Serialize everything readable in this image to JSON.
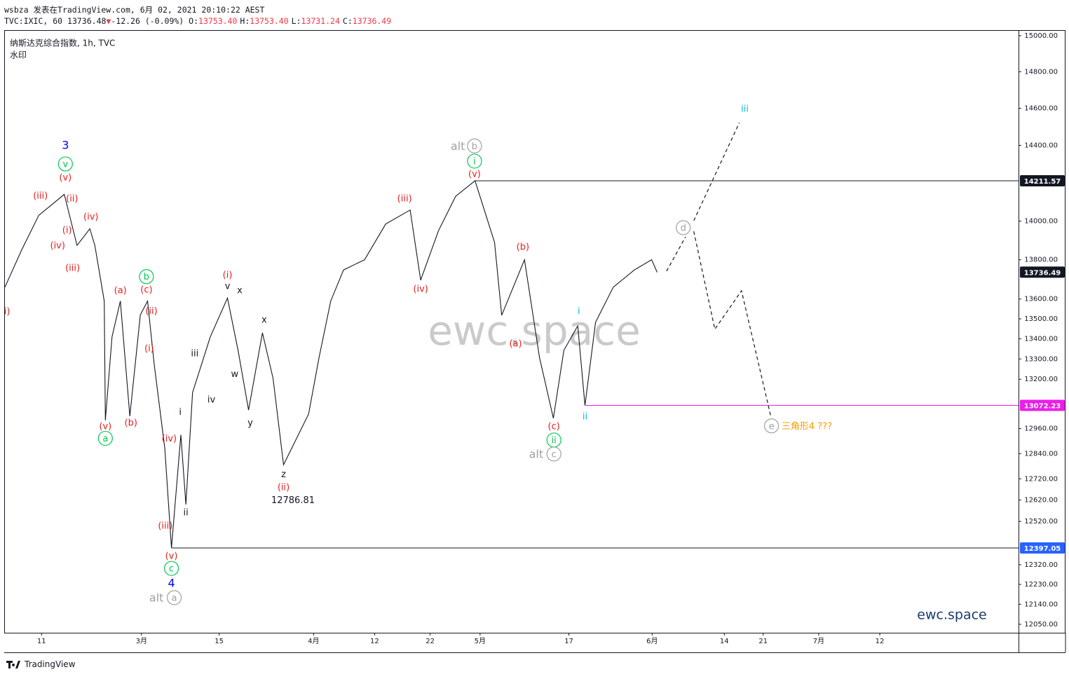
{
  "header": {
    "author_line": "wsbza 发表在TradingView.com, 6月 02, 2021 20:10:22 AEST",
    "symbol": "TVC:IXIC, 60",
    "last": "13736.48",
    "arrow": "▼",
    "change": "-12.26 (-0.09%)",
    "ohlc": [
      {
        "label": "O:",
        "value": "13753.40"
      },
      {
        "label": "H:",
        "value": "13753.40"
      },
      {
        "label": "L:",
        "value": "13731.24"
      },
      {
        "label": "C:",
        "value": "13736.49"
      }
    ]
  },
  "footer": {
    "brand": "TradingView"
  },
  "chart_data": {
    "type": "line",
    "title": "纳斯达克综合指数, 1h, TVC",
    "subtitle": "水印",
    "watermark": "ewc.space",
    "signature": "ewc.space",
    "log_scale": true,
    "grid": false,
    "xlim": [
      35.4,
      218
    ],
    "ylim": [
      12012,
      15027
    ],
    "xticks": [
      {
        "value": 42,
        "label": "11"
      },
      {
        "value": 60,
        "label": "3月"
      },
      {
        "value": 74,
        "label": "15"
      },
      {
        "value": 91,
        "label": "4月"
      },
      {
        "value": 102,
        "label": "12"
      },
      {
        "value": 112,
        "label": "22"
      },
      {
        "value": 121,
        "label": "5月"
      },
      {
        "value": 137,
        "label": "17"
      },
      {
        "value": 152,
        "label": "6月"
      },
      {
        "value": 165,
        "label": "14"
      },
      {
        "value": 172,
        "label": "21"
      },
      {
        "value": 182,
        "label": "7月"
      },
      {
        "value": 193,
        "label": "12"
      }
    ],
    "yticks": [
      {
        "value": 15000,
        "label": "15000.00"
      },
      {
        "value": 14800,
        "label": "14800.00"
      },
      {
        "value": 14600,
        "label": "14600.00"
      },
      {
        "value": 14400,
        "label": "14400.00"
      },
      {
        "value": 14000,
        "label": "14000.00"
      },
      {
        "value": 13800,
        "label": "13800.00"
      },
      {
        "value": 13600,
        "label": "13600.00"
      },
      {
        "value": 13500,
        "label": "13500.00"
      },
      {
        "value": 13400,
        "label": "13400.00"
      },
      {
        "value": 13300,
        "label": "13300.00"
      },
      {
        "value": 13200,
        "label": "13200.00"
      },
      {
        "value": 12960,
        "label": "12960.00"
      },
      {
        "value": 12840,
        "label": "12840.00"
      },
      {
        "value": 12720,
        "label": "12720.00"
      },
      {
        "value": 12620,
        "label": "12620.00"
      },
      {
        "value": 12520,
        "label": "12520.00"
      },
      {
        "value": 12320,
        "label": "12320.00"
      },
      {
        "value": 12230,
        "label": "12230.00"
      },
      {
        "value": 12140,
        "label": "12140.00"
      },
      {
        "value": 12050,
        "label": "12050.00"
      }
    ],
    "series": [
      {
        "color": "#131722",
        "dashed": false,
        "x": [
          35.4,
          38.4,
          41.5,
          46.1,
          48.4,
          50.7,
          51.6,
          53.3,
          53.5,
          54.7,
          56.2,
          57.9,
          59.8,
          61.1,
          62.3,
          64.2,
          65.4,
          67.1,
          68.0,
          69.2,
          72.4,
          75.5,
          77.4,
          79.3,
          81.8,
          83.7,
          85.6,
          90.1,
          92.0,
          94.1,
          96.4,
          100.2,
          104.0,
          108.4,
          110.3,
          113.5,
          116.6,
          120.1,
          123.6,
          124.9,
          129.0,
          131.7,
          134.2,
          136.1,
          138.6,
          139.9,
          141.8,
          145.0,
          148.8,
          151.9,
          152.9
        ],
        "values": [
          13660,
          13850,
          14030,
          14140,
          13874,
          13960,
          13874,
          13590,
          13000,
          13410,
          13590,
          13020,
          13520,
          13590,
          13273,
          12865,
          12397,
          12930,
          12599,
          13135,
          13410,
          13605,
          13343,
          13050,
          13430,
          13205,
          12787,
          13030,
          13308,
          13590,
          13748,
          13800,
          13985,
          14058,
          13696,
          13950,
          14130,
          14212,
          13890,
          13518,
          13800,
          13308,
          13010,
          13343,
          13465,
          13072,
          13483,
          13660,
          13748,
          13800,
          13736
        ]
      },
      {
        "color": "#131722",
        "dashed": true,
        "x": [
          154.6,
          158.0
        ],
        "values": [
          13742,
          13918
        ]
      },
      {
        "color": "#131722",
        "dashed": true,
        "x": [
          159.5,
          167.7
        ],
        "values": [
          14002,
          14522
        ]
      },
      {
        "color": "#131722",
        "dashed": true,
        "x": [
          159.5,
          163.3,
          168.1,
          173.4
        ],
        "values": [
          13947,
          13448,
          13642,
          13017
        ]
      }
    ],
    "levels": [
      {
        "value": 14211.57,
        "from": 120.1,
        "line_color": "#131722",
        "label_color": "#131722"
      },
      {
        "value": 13736.49,
        "label_color": "#131722"
      },
      {
        "value": 13072.23,
        "from": 139.9,
        "line_color": "#e91ee9",
        "label_color": "#e91ee9"
      },
      {
        "value": 12397.05,
        "from": 65.4,
        "line_color": "#131722",
        "label_color": "#2962ff"
      }
    ],
    "annotations": [
      {
        "text": "3",
        "x": 46.3,
        "y": 14402,
        "color": "#0000ff",
        "size": 16
      },
      {
        "text": "v",
        "x": 46.3,
        "y": 14301,
        "color": "#00c853",
        "circle": true
      },
      {
        "text": "(v)",
        "x": 46.3,
        "y": 14231,
        "color": "#e91e1e"
      },
      {
        "text": "(iii)",
        "x": 41.8,
        "y": 14134,
        "color": "#e91e1e"
      },
      {
        "text": "(ii)",
        "x": 47.5,
        "y": 14120,
        "color": "#e91e1e"
      },
      {
        "text": "(iv)",
        "x": 50.9,
        "y": 14024,
        "color": "#e91e1e"
      },
      {
        "text": "(i)",
        "x": 46.6,
        "y": 13955,
        "color": "#e91e1e"
      },
      {
        "text": "(iv)",
        "x": 44.9,
        "y": 13874,
        "color": "#e91e1e"
      },
      {
        "text": "(iii)",
        "x": 47.6,
        "y": 13760,
        "color": "#e91e1e"
      },
      {
        "text": "i)",
        "x": 35.8,
        "y": 13539,
        "color": "#e91e1e"
      },
      {
        "text": "(a)",
        "x": 56.2,
        "y": 13645,
        "color": "#e91e1e"
      },
      {
        "text": "b",
        "x": 60.9,
        "y": 13714,
        "color": "#00c853",
        "circle": true
      },
      {
        "text": "(c)",
        "x": 60.9,
        "y": 13648,
        "color": "#e91e1e"
      },
      {
        "text": "(ii)",
        "x": 61.8,
        "y": 13540,
        "color": "#e91e1e"
      },
      {
        "text": "(i)",
        "x": 61.4,
        "y": 13353,
        "color": "#e91e1e"
      },
      {
        "text": "(v)",
        "x": 53.5,
        "y": 12973,
        "color": "#e91e1e"
      },
      {
        "text": "a",
        "x": 53.5,
        "y": 12913,
        "color": "#00c853",
        "circle": true
      },
      {
        "text": "(b)",
        "x": 58.1,
        "y": 12990,
        "color": "#e91e1e"
      },
      {
        "text": "(iv)",
        "x": 65.0,
        "y": 12913,
        "color": "#e91e1e"
      },
      {
        "text": "(iii)",
        "x": 64.3,
        "y": 12501,
        "color": "#e91e1e"
      },
      {
        "text": "(v)",
        "x": 65.4,
        "y": 12361,
        "color": "#e91e1e"
      },
      {
        "text": "c",
        "x": 65.4,
        "y": 12303,
        "color": "#00c853",
        "circle": true
      },
      {
        "text": "4",
        "x": 65.4,
        "y": 12237,
        "color": "#0000ff",
        "size": 16
      },
      {
        "text": "alt",
        "x": 62.7,
        "y": 12170,
        "color": "#a0a0a0",
        "size": 16
      },
      {
        "text": "a",
        "x": 65.9,
        "y": 12170,
        "color": "#a0a0a0",
        "circle": true
      },
      {
        "text": "i",
        "x": 67.0,
        "y": 13041,
        "color": "#131722"
      },
      {
        "text": "ii",
        "x": 68.0,
        "y": 12563,
        "color": "#131722"
      },
      {
        "text": "iii",
        "x": 69.6,
        "y": 13329,
        "color": "#131722"
      },
      {
        "text": "iv",
        "x": 72.6,
        "y": 13102,
        "color": "#131722"
      },
      {
        "text": "(i)",
        "x": 75.5,
        "y": 13724,
        "color": "#e91e1e"
      },
      {
        "text": "v",
        "x": 75.5,
        "y": 13667,
        "color": "#131722"
      },
      {
        "text": "x",
        "x": 77.7,
        "y": 13645,
        "color": "#131722"
      },
      {
        "text": "w",
        "x": 76.8,
        "y": 13226,
        "color": "#131722"
      },
      {
        "text": "y",
        "x": 79.6,
        "y": 12990,
        "color": "#131722"
      },
      {
        "text": "x",
        "x": 82.1,
        "y": 13497,
        "color": "#131722"
      },
      {
        "text": "z",
        "x": 85.6,
        "y": 12742,
        "color": "#131722"
      },
      {
        "text": "(ii)",
        "x": 85.6,
        "y": 12682,
        "color": "#e91e1e"
      },
      {
        "text": "12786.81",
        "x": 87.3,
        "y": 12620,
        "color": "#131722"
      },
      {
        "text": "(iii)",
        "x": 107.4,
        "y": 14120,
        "color": "#e91e1e"
      },
      {
        "text": "(iv)",
        "x": 110.3,
        "y": 13652,
        "color": "#e91e1e"
      },
      {
        "text": "alt",
        "x": 117.0,
        "y": 14397,
        "color": "#a0a0a0",
        "size": 16
      },
      {
        "text": "b",
        "x": 120.0,
        "y": 14397,
        "color": "#a0a0a0",
        "circle": true
      },
      {
        "text": "i",
        "x": 120.0,
        "y": 14316,
        "color": "#00c853",
        "circle": true
      },
      {
        "text": "(v)",
        "x": 120.0,
        "y": 14249,
        "color": "#e91e1e"
      },
      {
        "text": "(b)",
        "x": 128.7,
        "y": 13868,
        "color": "#e91e1e"
      },
      {
        "text": "(a)",
        "x": 127.4,
        "y": 13377,
        "color": "#e91e1e"
      },
      {
        "text": "(c)",
        "x": 134.3,
        "y": 12973,
        "color": "#e91e1e"
      },
      {
        "text": "ii",
        "x": 134.3,
        "y": 12905,
        "color": "#00c853",
        "circle": true
      },
      {
        "text": "alt",
        "x": 131.1,
        "y": 12838,
        "color": "#a0a0a0",
        "size": 16
      },
      {
        "text": "c",
        "x": 134.3,
        "y": 12838,
        "color": "#a0a0a0",
        "circle": true
      },
      {
        "text": "i",
        "x": 138.8,
        "y": 13540,
        "color": "#00bcd4"
      },
      {
        "text": "ii",
        "x": 139.9,
        "y": 13020,
        "color": "#00bcd4"
      },
      {
        "text": "d",
        "x": 157.6,
        "y": 13966,
        "color": "#a0a0a0",
        "circle": true
      },
      {
        "text": "iii",
        "x": 168.7,
        "y": 14599,
        "color": "#00bcd4"
      },
      {
        "text": "e",
        "x": 173.5,
        "y": 12973,
        "color": "#a0a0a0",
        "circle": true
      },
      {
        "text": "三角形4 ???",
        "x": 175.3,
        "y": 12973,
        "color": "#ff9800",
        "anchor": "start"
      }
    ]
  }
}
